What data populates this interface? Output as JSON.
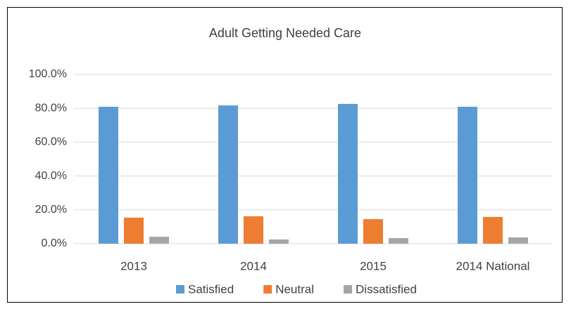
{
  "chart_data": {
    "type": "bar",
    "title": "Adult Getting Needed Care",
    "categories": [
      "2013",
      "2014",
      "2015",
      "2014 National"
    ],
    "series": [
      {
        "name": "Satisfied",
        "color": "#5b9bd5",
        "values": [
          80.9,
          81.7,
          82.6,
          80.9
        ]
      },
      {
        "name": "Neutral",
        "color": "#ed7d31",
        "values": [
          15.4,
          16.2,
          14.5,
          15.8
        ]
      },
      {
        "name": "Dissatisfied",
        "color": "#a5a5a5",
        "values": [
          4.1,
          2.5,
          3.3,
          3.7
        ]
      }
    ],
    "ylim": [
      0,
      100
    ],
    "yticks": [
      {
        "value": 0,
        "label": "0.0%"
      },
      {
        "value": 20,
        "label": "20.0%"
      },
      {
        "value": 40,
        "label": "40.0%"
      },
      {
        "value": 60,
        "label": "60.0%"
      },
      {
        "value": 80,
        "label": "80.0%"
      },
      {
        "value": 100,
        "label": "100.0%"
      }
    ],
    "grid": true,
    "legend": "bottom"
  }
}
